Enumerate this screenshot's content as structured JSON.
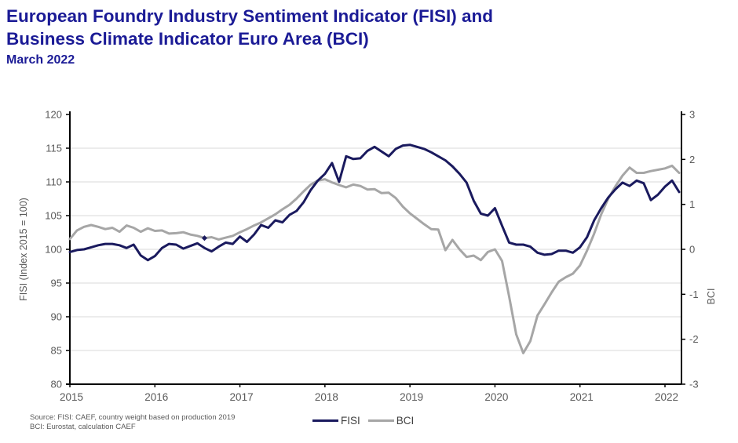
{
  "title": {
    "line1": "European Foundry Industry Sentiment Indicator (FISI) and",
    "line2": "Business Climate Indicator Euro Area (BCI)",
    "subtitle": "March 2022"
  },
  "source": {
    "line1": "Source: FISI: CAEF, country weight based on production 2019",
    "line2": "BCI: Eurostat, calculation CAEF"
  },
  "legend": {
    "fisi_label": "FISI",
    "bci_label": "BCI"
  },
  "colors": {
    "title": "#1b1b96",
    "fisi_line": "#1a1a5e",
    "bci_line": "#a6a6a6",
    "axis": "#000000",
    "grid": "#d9d9d9",
    "tick_text": "#595959"
  },
  "chart_data": {
    "type": "line",
    "title": "",
    "x_monthly_start": "2015-01",
    "x_monthly_end": "2022-03",
    "x_tick_labels": [
      "2015",
      "2016",
      "2017",
      "2018",
      "2019",
      "2020",
      "2021",
      "2022"
    ],
    "grid": "horizontal gridlines every 5 FISI index units (85-115), legend bottom center",
    "left_axis": {
      "label": "FISI (Index 2015 = 100)",
      "range": [
        80,
        120
      ],
      "ticks": [
        120,
        115,
        110,
        105,
        100,
        95,
        90,
        85,
        80
      ]
    },
    "right_axis": {
      "label": "BCI",
      "range": [
        -3,
        3
      ],
      "ticks": [
        3,
        2,
        1,
        0,
        -1,
        -2,
        -3
      ]
    },
    "series": [
      {
        "name": "FISI",
        "axis": "left",
        "values": [
          99.6,
          99.9,
          100.0,
          100.3,
          100.6,
          100.8,
          100.8,
          100.6,
          100.2,
          100.7,
          99.1,
          98.4,
          99.0,
          100.2,
          100.8,
          100.7,
          100.1,
          100.5,
          100.9,
          100.2,
          99.7,
          100.4,
          101.0,
          100.8,
          101.9,
          101.1,
          102.2,
          103.6,
          103.2,
          104.3,
          104.0,
          105.1,
          105.7,
          107.0,
          108.8,
          110.2,
          111.2,
          112.8,
          110.0,
          113.8,
          113.4,
          113.5,
          114.6,
          115.2,
          114.5,
          113.8,
          114.9,
          115.4,
          115.5,
          115.2,
          114.9,
          114.4,
          113.8,
          113.2,
          112.3,
          111.2,
          109.9,
          107.2,
          105.3,
          105.0,
          106.1,
          103.5,
          101.0,
          100.7,
          100.7,
          100.4,
          99.5,
          99.2,
          99.3,
          99.8,
          99.8,
          99.5,
          100.3,
          101.8,
          104.3,
          106.1,
          107.7,
          108.9,
          109.9,
          109.4,
          110.2,
          109.8,
          107.3,
          108.1,
          109.3,
          110.2,
          108.5
        ]
      },
      {
        "name": "BCI",
        "axis": "right",
        "values": [
          0.23,
          0.42,
          0.5,
          0.54,
          0.5,
          0.45,
          0.48,
          0.39,
          0.53,
          0.48,
          0.39,
          0.47,
          0.41,
          0.42,
          0.35,
          0.36,
          0.38,
          0.33,
          0.3,
          0.25,
          0.27,
          0.22,
          0.26,
          0.3,
          0.38,
          0.45,
          0.53,
          0.6,
          0.69,
          0.78,
          0.89,
          0.99,
          1.13,
          1.29,
          1.44,
          1.53,
          1.56,
          1.49,
          1.43,
          1.38,
          1.44,
          1.41,
          1.33,
          1.34,
          1.25,
          1.26,
          1.14,
          0.95,
          0.8,
          0.68,
          0.56,
          0.45,
          0.44,
          -0.02,
          0.21,
          0.0,
          -0.17,
          -0.14,
          -0.24,
          -0.06,
          0.0,
          -0.26,
          -1.05,
          -1.89,
          -2.31,
          -2.04,
          -1.47,
          -1.22,
          -0.96,
          -0.72,
          -0.62,
          -0.54,
          -0.36,
          -0.03,
          0.35,
          0.78,
          1.13,
          1.4,
          1.64,
          1.82,
          1.7,
          1.7,
          1.74,
          1.77,
          1.8,
          1.86,
          1.7
        ]
      }
    ],
    "crossover_marker": {
      "series": "BCI",
      "month_index": 19,
      "note": "small dark dot where lines touch, Aug 2016"
    }
  }
}
